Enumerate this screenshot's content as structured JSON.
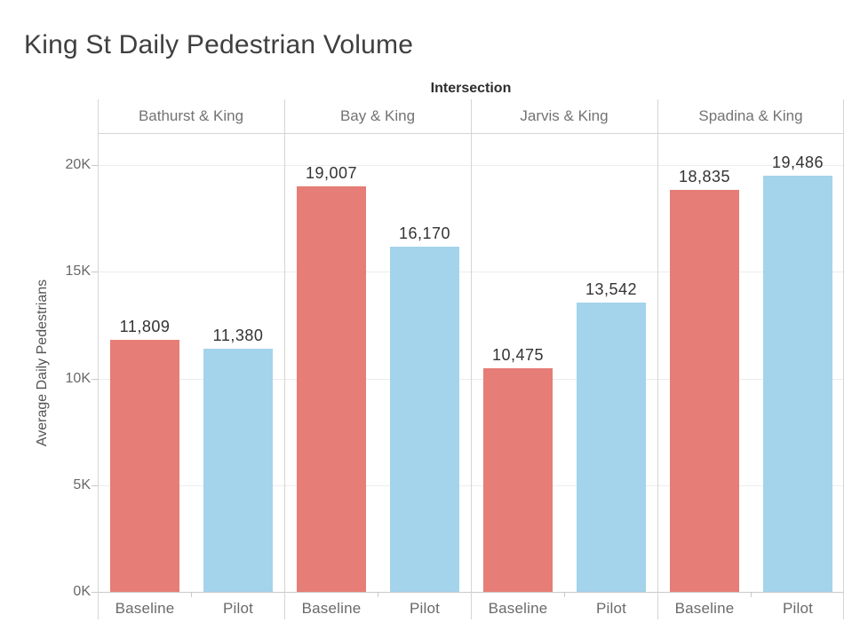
{
  "title": "King St Daily Pedestrian Volume",
  "chart_data": {
    "type": "bar",
    "title": "King St Daily Pedestrian Volume",
    "col_field_label": "Intersection",
    "ylabel": "Average Daily Pedestrians",
    "categories": [
      "Bathurst & King",
      "Bay & King",
      "Jarvis & King",
      "Spadina & King"
    ],
    "series": [
      {
        "name": "Baseline",
        "color": "#e67d76",
        "values": [
          11809,
          19007,
          10475,
          18835
        ],
        "labels": [
          "11,809",
          "19,007",
          "10,475",
          "18,835"
        ]
      },
      {
        "name": "Pilot",
        "color": "#a4d3ec",
        "values": [
          11380,
          16170,
          13542,
          19486
        ],
        "labels": [
          "11,380",
          "16,170",
          "13,542",
          "19,486"
        ]
      }
    ],
    "ytick_labels": [
      "0K",
      "5K",
      "10K",
      "15K",
      "20K"
    ],
    "ytick_values": [
      0,
      5000,
      10000,
      15000,
      20000
    ],
    "ylim": [
      0,
      21400
    ],
    "grid": "horizontal",
    "legend": "none",
    "bar_value_labels_shown": true,
    "colors": {
      "gridline": "#ececec",
      "frame_line": "#d5d5d5",
      "axis_line": "#c9c9c9",
      "tick_mark": "#c9c9c9"
    }
  }
}
